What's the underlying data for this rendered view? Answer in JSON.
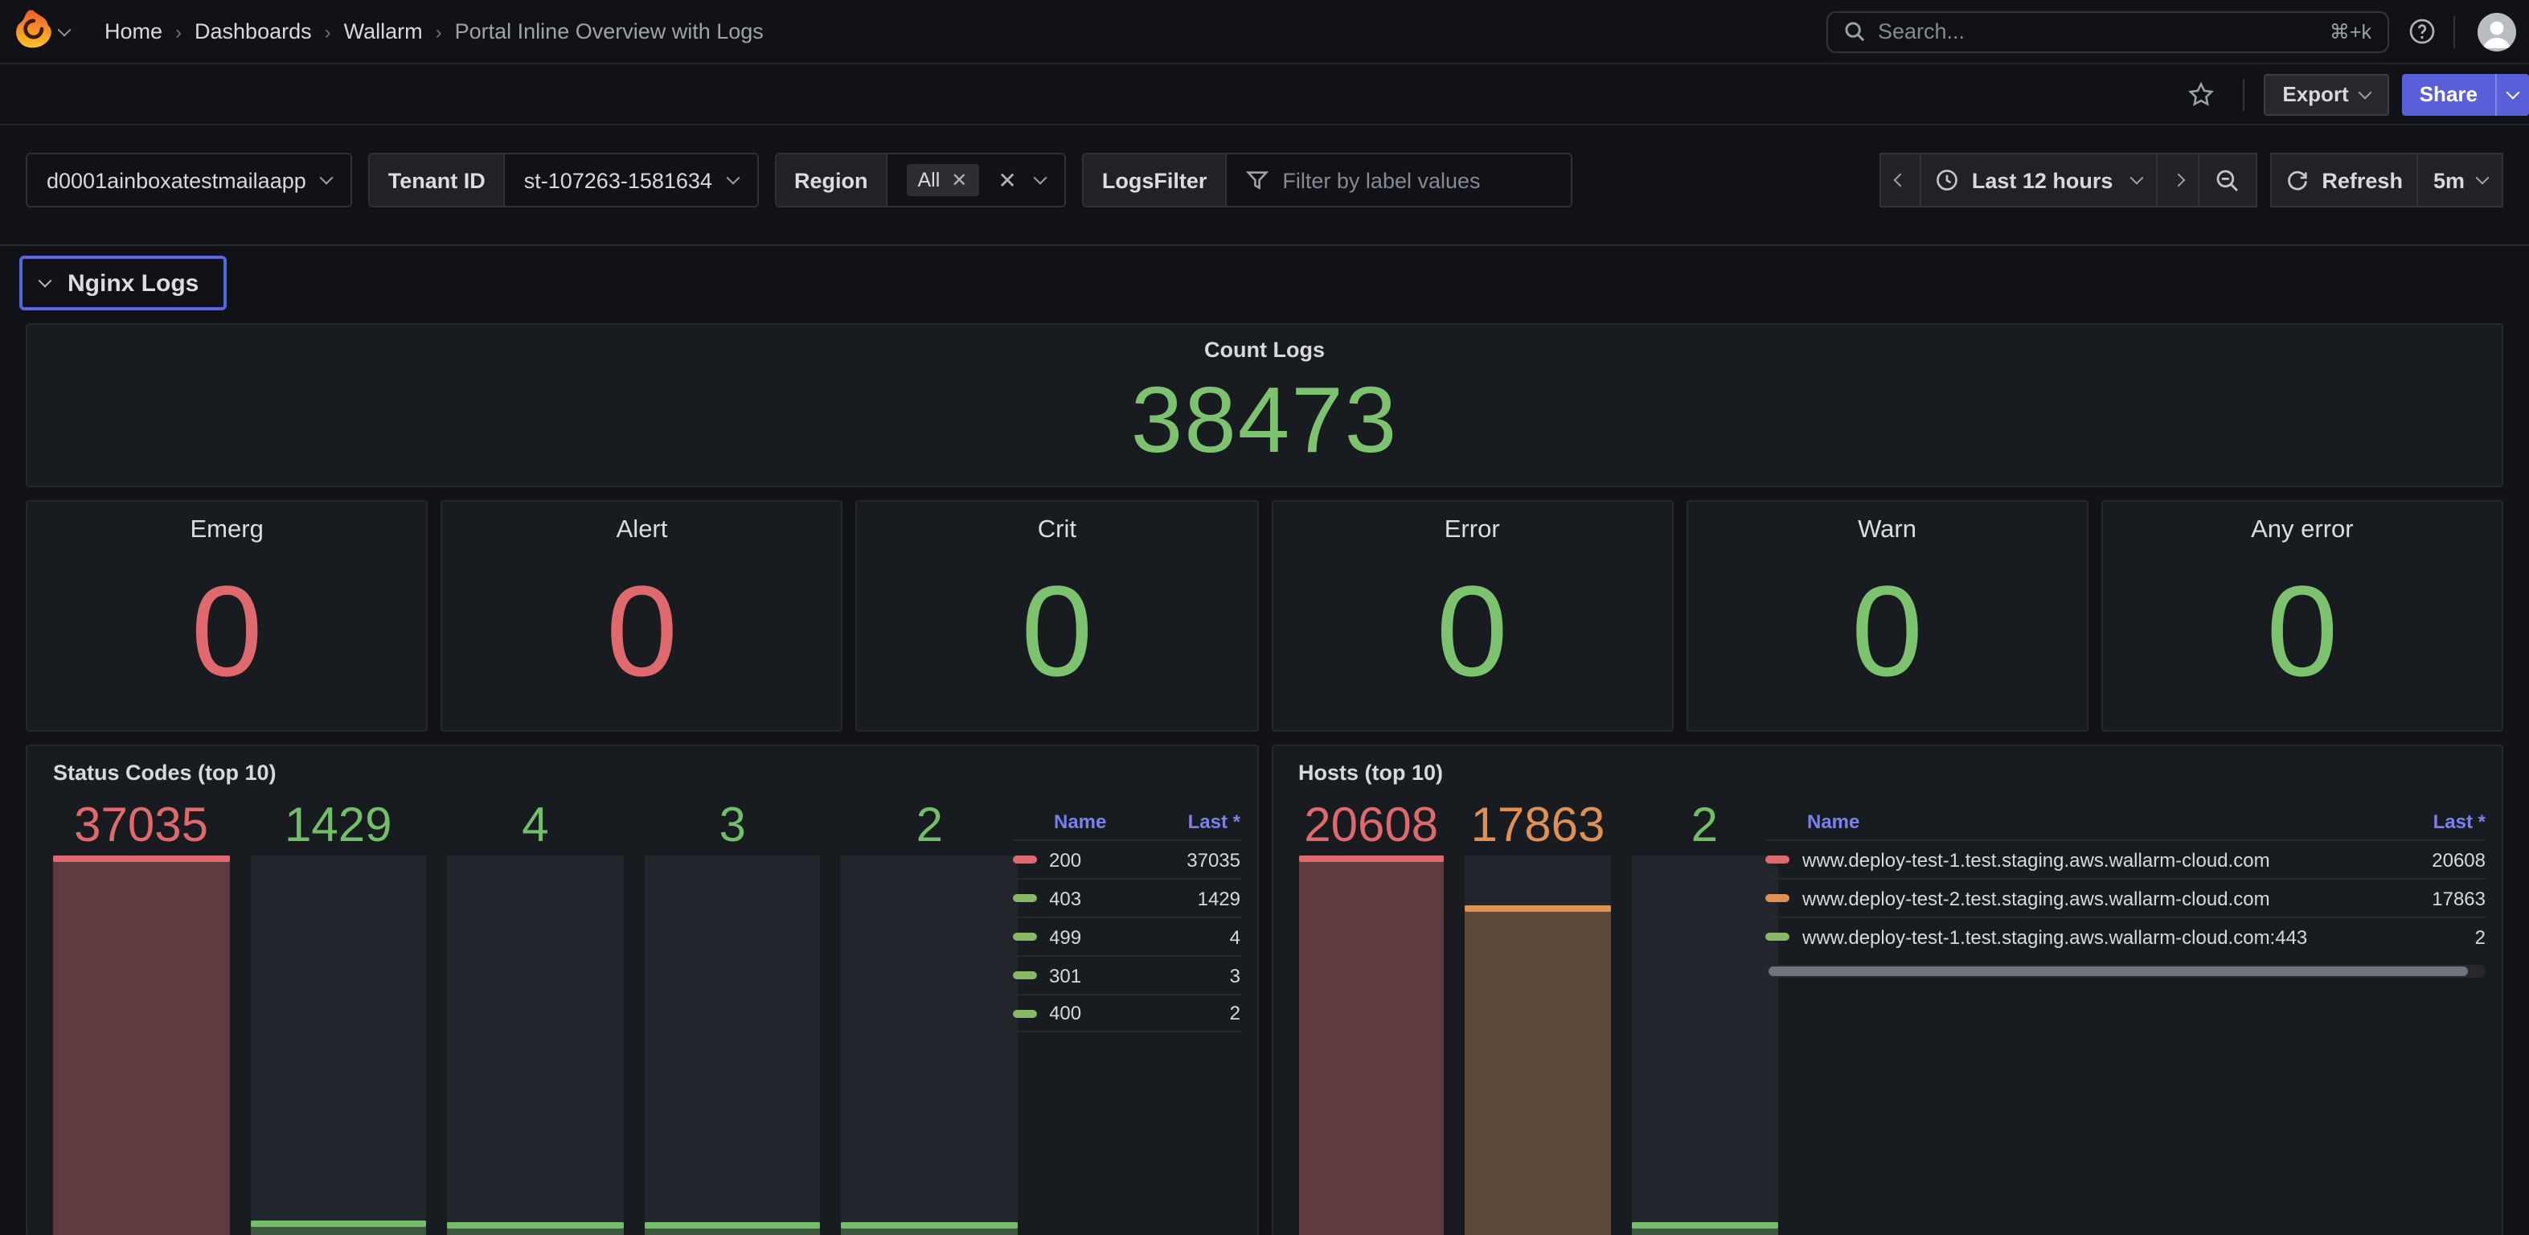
{
  "theme": {
    "accent_blue": "#585fd9",
    "focus_outline": "#5368e0",
    "legend_header": "#7a80f0",
    "green": "#7dc36f",
    "red": "#e0696d",
    "orange": "#de9152"
  },
  "topnav": {
    "breadcrumbs": [
      "Home",
      "Dashboards",
      "Wallarm",
      "Portal Inline Overview with Logs"
    ],
    "search_placeholder": "Search...",
    "search_shortcut": "⌘+k"
  },
  "toolbar": {
    "export_label": "Export",
    "share_label": "Share"
  },
  "filterbar": {
    "app_select_value": "d0001ainboxatestmailaapp",
    "tenant_label": "Tenant ID",
    "tenant_value": "st-107263-1581634",
    "region_label": "Region",
    "region_value": "All",
    "logs_filter_label": "LogsFilter",
    "logs_filter_placeholder": "Filter by label values",
    "time_range": "Last 12 hours",
    "refresh_label": "Refresh",
    "refresh_interval": "5m"
  },
  "row_header": {
    "title": "Nginx Logs"
  },
  "count_panel": {
    "title": "Count Logs",
    "value": "38473",
    "color": "#7dc36f"
  },
  "stat_panels": [
    {
      "title": "Emerg",
      "value": "0",
      "color": "#e0696d"
    },
    {
      "title": "Alert",
      "value": "0",
      "color": "#e0696d"
    },
    {
      "title": "Crit",
      "value": "0",
      "color": "#7dc36f"
    },
    {
      "title": "Error",
      "value": "0",
      "color": "#7dc36f"
    },
    {
      "title": "Warn",
      "value": "0",
      "color": "#7dc36f"
    },
    {
      "title": "Any error",
      "value": "0",
      "color": "#7dc36f"
    }
  ],
  "chart_data": [
    {
      "type": "bar",
      "panel_title": "Status Codes (top 10)",
      "categories": [
        "200",
        "403",
        "499",
        "301",
        "400"
      ],
      "values": [
        37035,
        1429,
        4,
        3,
        2
      ],
      "colors": [
        "#e0696d",
        "#73bf69",
        "#73bf69",
        "#73bf69",
        "#73bf69"
      ],
      "value_labels": [
        "37035",
        "1429",
        "4",
        "3",
        "2"
      ],
      "ylim": [
        0,
        37035
      ],
      "legend": {
        "position": "right",
        "headers": [
          "Name",
          "Last *"
        ],
        "rows": [
          {
            "name": "200",
            "value": "37035",
            "color": "#e0696d"
          },
          {
            "name": "403",
            "value": "1429",
            "color": "#86b865"
          },
          {
            "name": "499",
            "value": "4",
            "color": "#86b865"
          },
          {
            "name": "301",
            "value": "3",
            "color": "#86b865"
          },
          {
            "name": "400",
            "value": "2",
            "color": "#86b865"
          }
        ],
        "has_scrollbar": false
      }
    },
    {
      "type": "bar",
      "panel_title": "Hosts (top 10)",
      "categories": [
        "www.deploy-test-1.test.staging.aws.wallarm-cloud.com",
        "www.deploy-test-2.test.staging.aws.wallarm-cloud.com",
        "www.deploy-test-1.test.staging.aws.wallarm-cloud.com:443"
      ],
      "values": [
        20608,
        17863,
        2
      ],
      "colors": [
        "#e0696d",
        "#de9152",
        "#73bf69"
      ],
      "value_labels": [
        "20608",
        "17863",
        "2"
      ],
      "ylim": [
        0,
        20608
      ],
      "legend": {
        "position": "right",
        "headers": [
          "Name",
          "Last *"
        ],
        "rows": [
          {
            "name": "www.deploy-test-1.test.staging.aws.wallarm-cloud.com",
            "value": "20608",
            "color": "#e0696d"
          },
          {
            "name": "www.deploy-test-2.test.staging.aws.wallarm-cloud.com",
            "value": "17863",
            "color": "#de9152"
          },
          {
            "name": "www.deploy-test-1.test.staging.aws.wallarm-cloud.com:443",
            "value": "2",
            "color": "#86b865"
          }
        ],
        "has_scrollbar": true
      }
    }
  ]
}
